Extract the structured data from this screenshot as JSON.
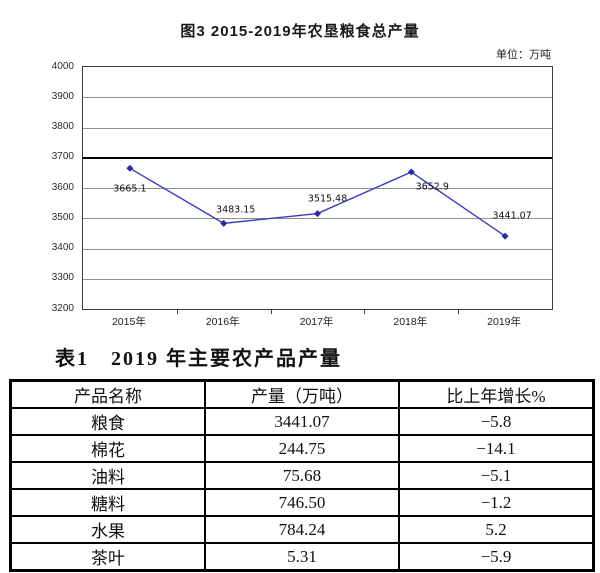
{
  "chart_data": {
    "type": "line",
    "title": "图3  2015-2019年农垦粮食总产量",
    "unit_label": "单位：万吨",
    "categories": [
      "2015年",
      "2016年",
      "2017年",
      "2018年",
      "2019年"
    ],
    "values": [
      3665.1,
      3483.15,
      3515.48,
      3652.9,
      3441.07
    ],
    "data_labels": [
      "3665.1",
      "3483.15",
      "3515.48",
      "3652.9",
      "3441.07"
    ],
    "ylim": [
      3200,
      4000
    ],
    "ytick_interval": 100,
    "yticks": [
      4000,
      3900,
      3800,
      3700,
      3600,
      3500,
      3400,
      3300,
      3200
    ],
    "emphasized_gridline": 3700,
    "grid": true,
    "legend": "none",
    "line_color": "#3a3ac8",
    "marker_color": "#2a2aa8",
    "xlabel": "",
    "ylabel": ""
  },
  "table": {
    "title": "表1　2019 年主要农产品产量",
    "headers": [
      "产品名称",
      "产量（万吨）",
      "比上年增长%"
    ],
    "rows": [
      [
        "粮食",
        "3441.07",
        "−5.8"
      ],
      [
        "棉花",
        "244.75",
        "−14.1"
      ],
      [
        "油料",
        "75.68",
        "−5.1"
      ],
      [
        "糖料",
        "746.50",
        "−1.2"
      ],
      [
        "水果",
        "784.24",
        "5.2"
      ],
      [
        "茶叶",
        "5.31",
        "−5.9"
      ]
    ]
  }
}
